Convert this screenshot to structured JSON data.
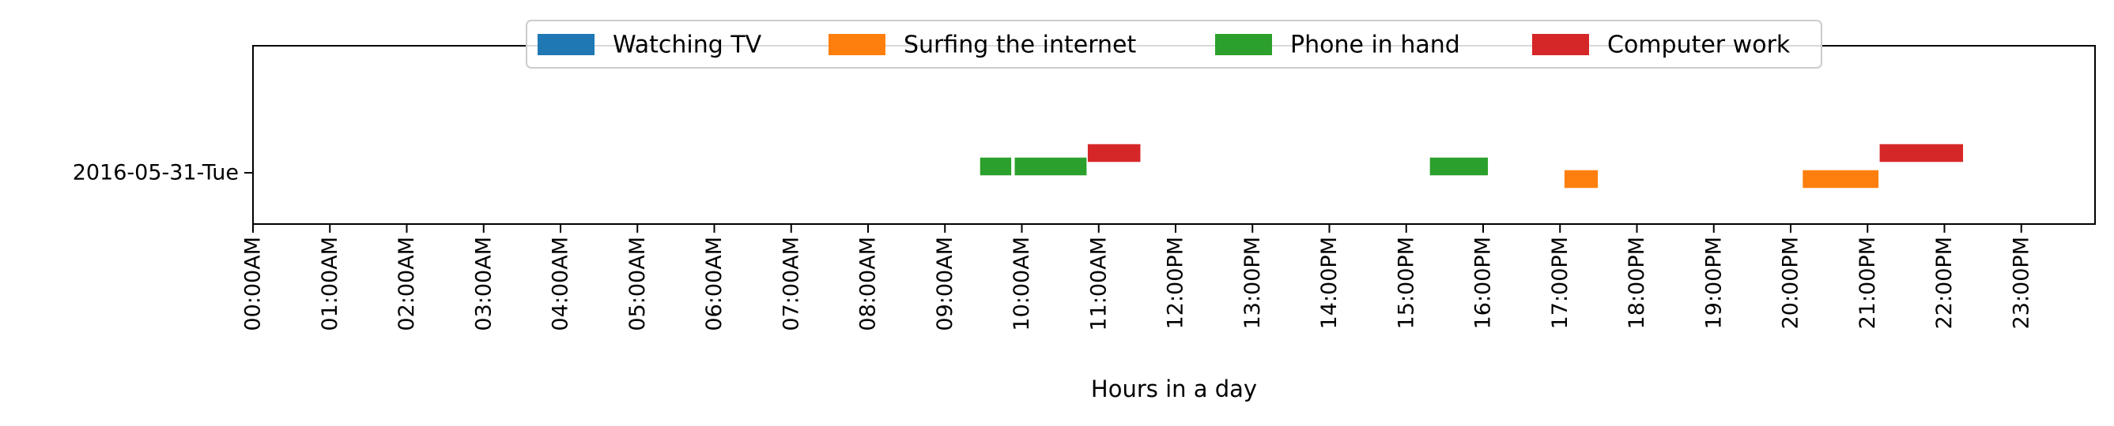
{
  "chart_data": {
    "type": "timeline",
    "xlabel": "Hours in a day",
    "ylabel": "",
    "xlim": [
      0,
      24
    ],
    "x_ticks": [
      "00:00AM",
      "01:00AM",
      "02:00AM",
      "03:00AM",
      "04:00AM",
      "05:00AM",
      "06:00AM",
      "07:00AM",
      "08:00AM",
      "09:00AM",
      "10:00AM",
      "11:00AM",
      "12:00PM",
      "13:00PM",
      "14:00PM",
      "15:00PM",
      "16:00PM",
      "17:00PM",
      "18:00PM",
      "19:00PM",
      "20:00PM",
      "21:00PM",
      "22:00PM",
      "23:00PM"
    ],
    "rows": [
      "2016-05-31-Tue"
    ],
    "legend_position": "top-center",
    "series": [
      {
        "name": "Watching TV",
        "color": "#1f77b4",
        "intervals": []
      },
      {
        "name": "Surfing the internet",
        "color": "#ff7f0e",
        "intervals": [
          [
            17.05,
            17.5
          ],
          [
            20.15,
            21.15
          ]
        ]
      },
      {
        "name": "Phone in hand",
        "color": "#2ca02c",
        "intervals": [
          [
            9.45,
            9.87
          ],
          [
            9.9,
            10.85
          ],
          [
            15.3,
            16.07
          ]
        ]
      },
      {
        "name": "Computer work",
        "color": "#d62728",
        "intervals": [
          [
            10.85,
            11.55
          ],
          [
            21.15,
            22.25
          ]
        ]
      }
    ]
  }
}
